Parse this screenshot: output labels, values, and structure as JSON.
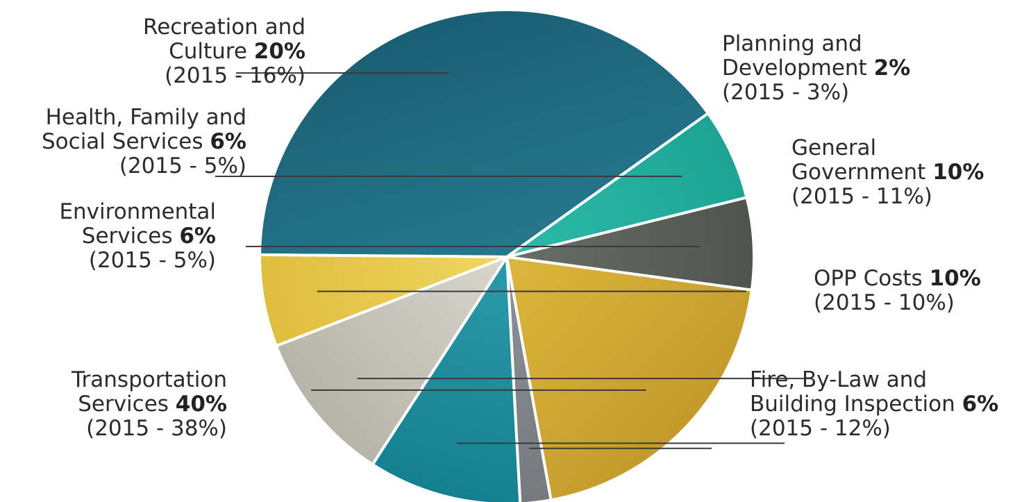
{
  "chart_data": {
    "type": "pie",
    "title": "",
    "slices": [
      {
        "name": "Transportation Services",
        "label_line1": "Transportation",
        "label_line2": "Services",
        "value": 40,
        "value_text": "40%",
        "prev_text": "(2015 - 38%)",
        "color": "#1a5f73",
        "color_light": "#26778d"
      },
      {
        "name": "Environmental Services",
        "label_line1": "Environmental",
        "label_line2": "Services",
        "value": 6,
        "value_text": "6%",
        "prev_text": "(2015 - 5%)",
        "color": "#1ea394",
        "color_light": "#2bbca9"
      },
      {
        "name": "Health, Family and Social Services",
        "label_line1": "Health, Family and",
        "label_line2": "Social Services",
        "value": 6,
        "value_text": "6%",
        "prev_text": "(2015 - 5%)",
        "color": "#50534f",
        "color_light": "#6a6d68"
      },
      {
        "name": "Recreation and Culture",
        "label_line1": "Recreation and",
        "label_line2": "Culture",
        "value": 20,
        "value_text": "20%",
        "prev_text": "(2015 - 16%)",
        "color": "#c49a2b",
        "color_light": "#ddb63c"
      },
      {
        "name": "Planning and Development",
        "label_line1": "Planning and",
        "label_line2": "Development",
        "value": 2,
        "value_text": "2%",
        "prev_text": "(2015 - 3%)",
        "color": "#767a80",
        "color_light": "#8e9298"
      },
      {
        "name": "General Government",
        "label_line1": "General",
        "label_line2": "Government",
        "value": 10,
        "value_text": "10%",
        "prev_text": "(2015 - 11%)",
        "color": "#14808f",
        "color_light": "#2b9aaa"
      },
      {
        "name": "OPP Costs",
        "label_line1": "",
        "label_line2": "OPP Costs",
        "value": 10,
        "value_text": "10%",
        "prev_text": "(2015 - 10%)",
        "color": "#b6b3a8",
        "color_light": "#d8d6cd"
      },
      {
        "name": "Fire, By-Law and Building Inspection",
        "label_line1": "Fire, By-Law and",
        "label_line2": "Building Inspection",
        "value": 6,
        "value_text": "6%",
        "prev_text": "(2015 - 12%)",
        "color": "#dfbd3e",
        "color_light": "#f1d660"
      }
    ]
  }
}
